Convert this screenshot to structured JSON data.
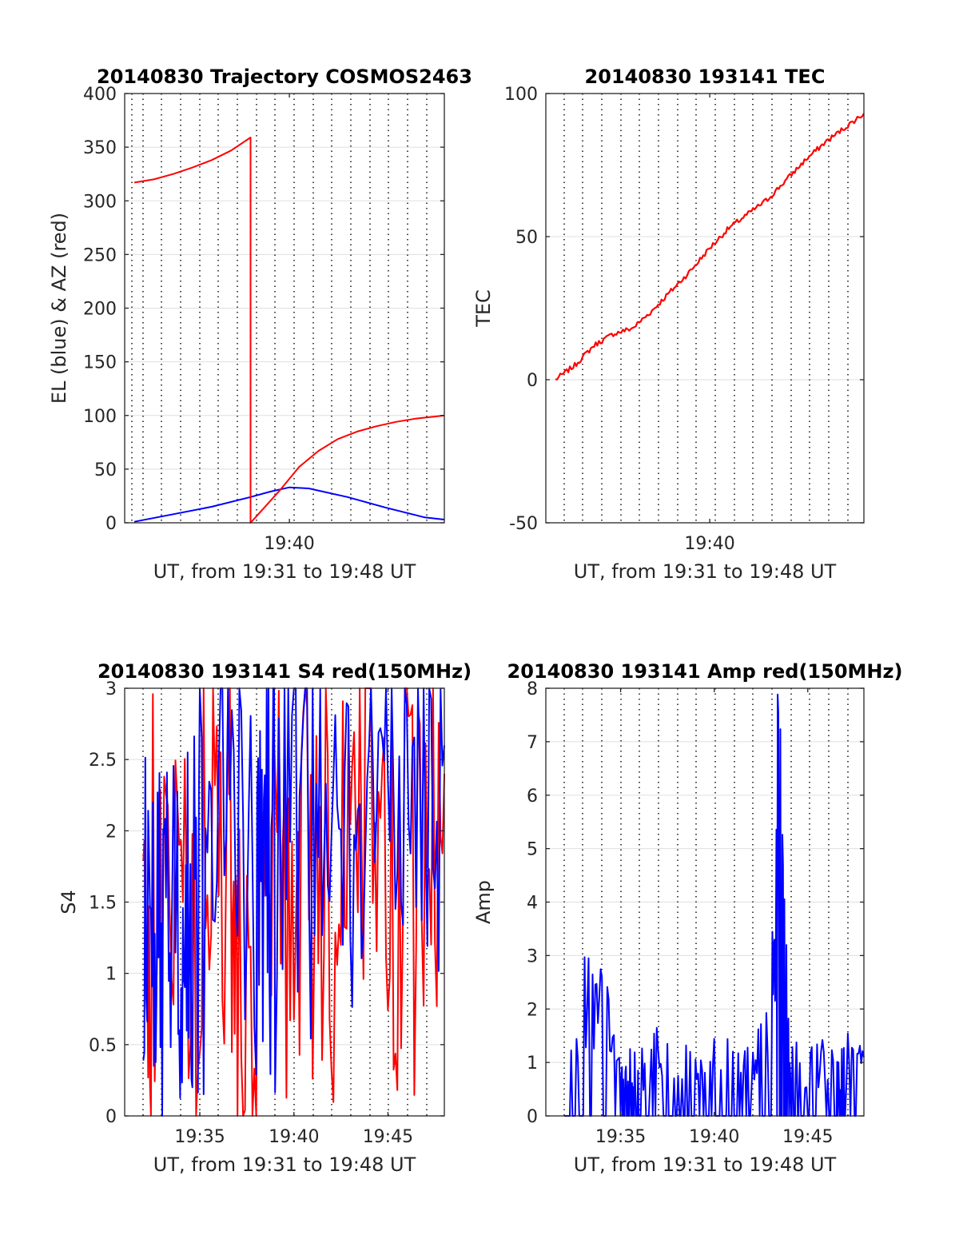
{
  "chart_data": [
    {
      "type": "line",
      "title": "20140830 Trajectory COSMOS2463",
      "xlabel": "UT, from 19:31 to 19:48 UT",
      "ylabel": "EL (blue) & AZ (red)",
      "xlim": [
        19.525,
        19.8
      ],
      "ylim": [
        0,
        400
      ],
      "yticks": [
        0,
        50,
        100,
        150,
        200,
        250,
        300,
        350,
        400
      ],
      "xticks": [
        {
          "value": 19.6667,
          "label": "19:40"
        }
      ],
      "grid": true,
      "series": [
        {
          "color": "#0000ff",
          "x": [
            19.5333,
            19.5667,
            19.6,
            19.6333,
            19.65,
            19.6667,
            19.6833,
            19.7167,
            19.75,
            19.7833,
            19.8
          ],
          "y": [
            1,
            8,
            15,
            24,
            29,
            33,
            32,
            24,
            14,
            5,
            3
          ]
        },
        {
          "color": "#ff0000",
          "x": [
            19.5333,
            19.55,
            19.5667,
            19.5833,
            19.6,
            19.6167,
            19.6333,
            19.6333,
            19.6417,
            19.6583,
            19.675,
            19.6917,
            19.7083,
            19.725,
            19.7417,
            19.7583,
            19.775,
            19.7917,
            19.8
          ],
          "y": [
            317,
            320,
            325,
            331,
            338,
            347,
            359,
            0,
            10,
            30,
            52,
            67,
            78,
            85,
            90,
            94,
            97,
            99,
            100
          ]
        }
      ]
    },
    {
      "type": "line",
      "title": "20140830 193141 TEC",
      "xlabel": "UT, from 19:31 to 19:48 UT",
      "ylabel": "TEC",
      "xlim": [
        19.525,
        19.8
      ],
      "ylim": [
        -50,
        100
      ],
      "yticks": [
        -50,
        0,
        50,
        100
      ],
      "xticks": [
        {
          "value": 19.6667,
          "label": "19:40"
        }
      ],
      "grid": true,
      "series": [
        {
          "color": "#ff0000",
          "x": [
            19.5333,
            19.55,
            19.5667,
            19.5833,
            19.6,
            19.6167,
            19.6333,
            19.65,
            19.6667,
            19.6833,
            19.7,
            19.7167,
            19.7333,
            19.75,
            19.7667,
            19.7833,
            19.8
          ],
          "y": [
            0,
            5,
            12,
            16,
            18,
            24,
            31,
            38,
            46,
            53,
            58,
            63,
            70,
            77,
            83,
            88,
            93
          ]
        }
      ]
    },
    {
      "type": "line",
      "title": "20140830 193141 S4 red(150MHz)",
      "xlabel": "UT, from 19:31 to 19:48 UT",
      "ylabel": "S4",
      "xlim": [
        19.5167,
        19.8
      ],
      "ylim": [
        0,
        3
      ],
      "yticks": [
        0,
        0.5,
        1,
        1.5,
        2,
        2.5,
        3
      ],
      "ytick_labels": [
        "0",
        "0.5",
        "1",
        "1.5",
        "2",
        "2.5",
        "3"
      ],
      "xticks": [
        {
          "value": 19.5833,
          "label": "19:35"
        },
        {
          "value": 19.6667,
          "label": "19:40"
        },
        {
          "value": 19.75,
          "label": "19:45"
        }
      ],
      "grid": true,
      "series": [
        {
          "color": "#ff0000",
          "x": [
            19.5333,
            19.5417,
            19.5583,
            19.575,
            19.5917,
            19.6083,
            19.6167,
            19.6333,
            19.65,
            19.6667,
            19.6833,
            19.7,
            19.7167,
            19.7333,
            19.75,
            19.7667,
            19.7833,
            19.8
          ],
          "y": [
            2.6,
            1.0,
            2.8,
            0.5,
            2.9,
            2.2,
            0.6,
            0.4,
            2.0,
            1.6,
            2.2,
            2.4,
            2.1,
            2.8,
            1.2,
            2.6,
            1.5,
            2.4
          ]
        },
        {
          "color": "#0000ff",
          "x": [
            19.5333,
            19.5417,
            19.55,
            19.5583,
            19.5667,
            19.575,
            19.5833,
            19.6,
            19.6167,
            19.6333,
            19.6417,
            19.65,
            19.6667,
            19.6833,
            19.7,
            19.7167,
            19.7333,
            19.75,
            19.7667,
            19.7833,
            19.8
          ],
          "y": [
            1.4,
            1.3,
            1.2,
            1.35,
            1.1,
            1.4,
            2.6,
            2.7,
            2.5,
            1.3,
            2.6,
            2.4,
            2.8,
            2.2,
            2.9,
            0.7,
            2.5,
            2.6,
            2.3,
            2.7,
            2.6
          ]
        }
      ]
    },
    {
      "type": "line",
      "title": "20140830 193141 Amp red(150MHz)",
      "xlabel": "UT, from 19:31 to 19:48 UT",
      "ylabel": "Amp",
      "xlim": [
        19.5167,
        19.8
      ],
      "ylim": [
        0,
        8
      ],
      "yticks": [
        0,
        1,
        2,
        3,
        4,
        5,
        6,
        7,
        8
      ],
      "xticks": [
        {
          "value": 19.5833,
          "label": "19:35"
        },
        {
          "value": 19.6667,
          "label": "19:40"
        },
        {
          "value": 19.75,
          "label": "19:45"
        }
      ],
      "grid": true,
      "series": [
        {
          "color": "#0000ff",
          "x": [
            19.5333,
            19.55,
            19.5667,
            19.5833,
            19.5917,
            19.6,
            19.6167,
            19.6333,
            19.65,
            19.6667,
            19.6833,
            19.7,
            19.7167,
            19.725,
            19.7333,
            19.7417,
            19.7583,
            19.775,
            19.7833,
            19.8
          ],
          "y": [
            2.8,
            2.5,
            2.4,
            1.2,
            1.1,
            1.0,
            1.7,
            1.0,
            1.2,
            1.3,
            1.5,
            1.1,
            2.2,
            7.9,
            1.1,
            1.2,
            1.3,
            1.0,
            1.4,
            1.1
          ]
        }
      ]
    }
  ]
}
